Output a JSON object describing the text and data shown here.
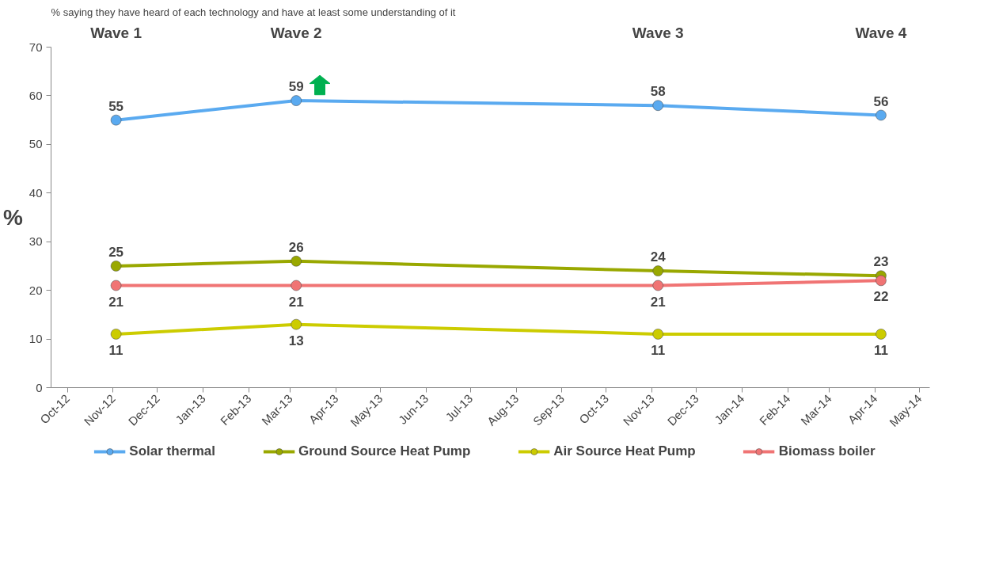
{
  "chart_data": {
    "type": "line",
    "title": "% saying they have heard of each technology and have at least some understanding of it",
    "ylabel": "%",
    "x": [
      "2012-11-03",
      "2013-03-05",
      "2013-11-05",
      "2014-04-05"
    ],
    "series": [
      {
        "name": "Solar thermal",
        "color": "#5aaaf0",
        "values": [
          55,
          59,
          58,
          56
        ]
      },
      {
        "name": "Ground Source Heat Pump",
        "color": "#99a800",
        "values": [
          25,
          26,
          24,
          23
        ]
      },
      {
        "name": "Air Source Heat Pump",
        "color": "#cccc00",
        "values": [
          11,
          13,
          11,
          11
        ]
      },
      {
        "name": "Biomass boiler",
        "color": "#f07474",
        "values": [
          21,
          21,
          21,
          22
        ]
      }
    ],
    "annotations": [
      "Wave 1",
      "Wave 2",
      "Wave 3",
      "Wave 4"
    ],
    "xlim": [
      "2012-09-20",
      "2014-05-08"
    ],
    "xticks": [
      {
        "value": "2012-10-01",
        "label": "Oct-12"
      },
      {
        "value": "2012-11-01",
        "label": "Nov-12"
      },
      {
        "value": "2012-12-01",
        "label": "Dec-12"
      },
      {
        "value": "2013-01-01",
        "label": "Jan-13"
      },
      {
        "value": "2013-02-01",
        "label": "Feb-13"
      },
      {
        "value": "2013-03-01",
        "label": "Mar-13"
      },
      {
        "value": "2013-04-01",
        "label": "Apr-13"
      },
      {
        "value": "2013-05-01",
        "label": "May-13"
      },
      {
        "value": "2013-06-01",
        "label": "Jun-13"
      },
      {
        "value": "2013-07-01",
        "label": "Jul-13"
      },
      {
        "value": "2013-08-01",
        "label": "Aug-13"
      },
      {
        "value": "2013-09-01",
        "label": "Sep-13"
      },
      {
        "value": "2013-10-01",
        "label": "Oct-13"
      },
      {
        "value": "2013-11-01",
        "label": "Nov-13"
      },
      {
        "value": "2013-12-01",
        "label": "Dec-13"
      },
      {
        "value": "2014-01-01",
        "label": "Jan-14"
      },
      {
        "value": "2014-02-01",
        "label": "Feb-14"
      },
      {
        "value": "2014-03-01",
        "label": "Mar-14"
      },
      {
        "value": "2014-04-01",
        "label": "Apr-14"
      },
      {
        "value": "2014-05-01",
        "label": "May-14"
      }
    ],
    "ylim": [
      0,
      70
    ],
    "yticks": [
      0,
      10,
      20,
      30,
      40,
      50,
      60,
      70
    ],
    "grid": false,
    "legend": "bottom",
    "marker": "circle",
    "line_style": "solid",
    "data_labels": true
  }
}
